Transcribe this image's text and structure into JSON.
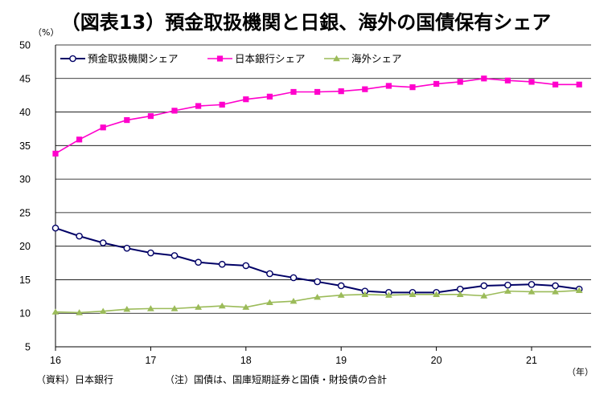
{
  "chart_data": {
    "type": "line",
    "title": "（図表13）預金取扱機関と日銀、海外の国債保有シェア",
    "ylabel": "（%）",
    "xunit": "（年）",
    "ylim": [
      5,
      50
    ],
    "yticks": [
      5,
      10,
      15,
      20,
      25,
      30,
      35,
      40,
      45,
      50
    ],
    "xlim": [
      16,
      21.625
    ],
    "xticks": [
      16,
      17,
      18,
      19,
      20,
      21
    ],
    "grid": "horizontal",
    "legend_position": "top-left",
    "x": [
      16.0,
      16.25,
      16.5,
      16.75,
      17.0,
      17.25,
      17.5,
      17.75,
      18.0,
      18.25,
      18.5,
      18.75,
      19.0,
      19.25,
      19.5,
      19.75,
      20.0,
      20.25,
      20.5,
      20.75,
      21.0,
      21.25,
      21.5
    ],
    "series": [
      {
        "name": "預金取扱機関シェア",
        "color": "#000066",
        "marker": "circle",
        "values": [
          22.7,
          21.5,
          20.5,
          19.7,
          19.0,
          18.6,
          17.6,
          17.3,
          17.1,
          15.9,
          15.3,
          14.7,
          14.1,
          13.3,
          13.1,
          13.1,
          13.1,
          13.6,
          14.1,
          14.2,
          14.3,
          14.1,
          13.6
        ]
      },
      {
        "name": "日本銀行シェア",
        "color": "#ff00cc",
        "marker": "square",
        "values": [
          33.8,
          35.9,
          37.7,
          38.8,
          39.4,
          40.2,
          40.9,
          41.1,
          41.9,
          42.3,
          43.0,
          43.0,
          43.1,
          43.4,
          43.9,
          43.7,
          44.2,
          44.5,
          45.0,
          44.7,
          44.5,
          44.1,
          44.1
        ]
      },
      {
        "name": "海外シェア",
        "color": "#9bbb59",
        "marker": "triangle",
        "values": [
          10.2,
          10.1,
          10.3,
          10.6,
          10.7,
          10.7,
          10.9,
          11.1,
          10.9,
          11.6,
          11.8,
          12.4,
          12.7,
          12.8,
          12.7,
          12.8,
          12.8,
          12.8,
          12.6,
          13.3,
          13.2,
          13.2,
          13.4
        ]
      }
    ],
    "notes": {
      "source": "（資料）日本銀行",
      "note": "（注）国債は、国庫短期証券と国債・財投債の合計"
    }
  }
}
